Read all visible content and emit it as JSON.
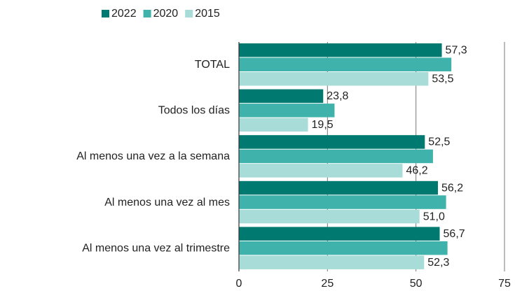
{
  "chart_data": {
    "type": "hbar",
    "categories": [
      "TOTAL",
      "Todos los días",
      "Al menos una vez a la semana",
      "Al menos una vez al mes",
      "Al menos una vez al trimestre"
    ],
    "series": [
      {
        "name": "2022",
        "color": "#007a70",
        "values": [
          57.3,
          23.8,
          52.5,
          56.2,
          56.7
        ],
        "value_labels": [
          "57,3",
          "23,8",
          "52,5",
          "56,2",
          "56,7"
        ]
      },
      {
        "name": "2020",
        "color": "#3fb3ab",
        "values": [
          60,
          27,
          54.8,
          58.5,
          58.9
        ]
      },
      {
        "name": "2015",
        "color": "#a8dcd8",
        "values": [
          53.5,
          19.5,
          46.2,
          51.0,
          52.3
        ],
        "value_labels": [
          "53,5",
          "19,5",
          "46,2",
          "51,0",
          "52,3"
        ]
      }
    ],
    "xlim": [
      0,
      75
    ],
    "xticks": [
      0,
      25,
      50,
      75
    ],
    "grid": true
  }
}
